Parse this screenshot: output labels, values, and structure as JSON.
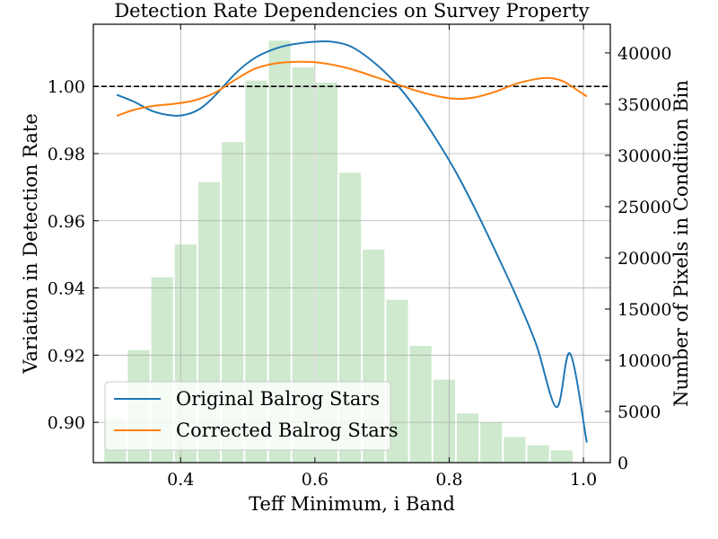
{
  "chart_data": {
    "type": "bar+line",
    "title": "Detection Rate Dependencies on Survey Property",
    "xlabel": "Teff Minimum, i Band",
    "ylabel": "Variation in Detection Rate",
    "y2label": "Number of Pixels in Condition Bin",
    "xlim": [
      0.27,
      1.04
    ],
    "ylim": [
      0.888,
      1.0185
    ],
    "y2lim": [
      0,
      42800
    ],
    "x_ticks": [
      0.4,
      0.6,
      0.8,
      1.0
    ],
    "x_tick_labels": [
      "0.4",
      "0.6",
      "0.8",
      "1.0"
    ],
    "y_ticks": [
      0.9,
      0.92,
      0.94,
      0.96,
      0.98,
      1.0
    ],
    "y_tick_labels": [
      "0.90",
      "0.92",
      "0.94",
      "0.96",
      "0.98",
      "1.00"
    ],
    "y2_ticks": [
      0,
      5000,
      10000,
      15000,
      20000,
      25000,
      30000,
      35000,
      40000
    ],
    "y2_tick_labels": [
      "0",
      "5000",
      "10000",
      "15000",
      "20000",
      "25000",
      "30000",
      "35000",
      "40000"
    ],
    "grid": true,
    "reference_line": {
      "y": 1.0,
      "style": "dashed",
      "color": "#000000"
    },
    "histogram": {
      "color": "#2ca02c",
      "opacity": 0.23,
      "bin_width": 0.035,
      "bins": [
        {
          "x": 0.3025,
          "count": 4300
        },
        {
          "x": 0.3375,
          "count": 11000
        },
        {
          "x": 0.3725,
          "count": 18100
        },
        {
          "x": 0.4075,
          "count": 21300
        },
        {
          "x": 0.4425,
          "count": 27400
        },
        {
          "x": 0.4775,
          "count": 31300
        },
        {
          "x": 0.5125,
          "count": 37300
        },
        {
          "x": 0.5475,
          "count": 41200
        },
        {
          "x": 0.5825,
          "count": 38600
        },
        {
          "x": 0.6175,
          "count": 37100
        },
        {
          "x": 0.6525,
          "count": 28300
        },
        {
          "x": 0.6875,
          "count": 20800
        },
        {
          "x": 0.7225,
          "count": 15900
        },
        {
          "x": 0.7575,
          "count": 11400
        },
        {
          "x": 0.7925,
          "count": 8100
        },
        {
          "x": 0.8275,
          "count": 4800
        },
        {
          "x": 0.8625,
          "count": 3900
        },
        {
          "x": 0.8975,
          "count": 2500
        },
        {
          "x": 0.9325,
          "count": 1700
        },
        {
          "x": 0.9675,
          "count": 1200
        }
      ]
    },
    "series": [
      {
        "name": "Original Balrog Stars",
        "color": "#1f77b4",
        "x": [
          0.305,
          0.33,
          0.36,
          0.39,
          0.41,
          0.43,
          0.45,
          0.48,
          0.5,
          0.52,
          0.55,
          0.58,
          0.6,
          0.62,
          0.64,
          0.66,
          0.69,
          0.72,
          0.75,
          0.78,
          0.81,
          0.84,
          0.87,
          0.9,
          0.93,
          0.96,
          0.98,
          1.005
        ],
        "y": [
          0.9975,
          0.9955,
          0.9925,
          0.9913,
          0.9917,
          0.9935,
          0.997,
          1.0035,
          1.007,
          1.0095,
          1.0118,
          1.0129,
          1.0133,
          1.0134,
          1.0128,
          1.0112,
          1.0068,
          1.001,
          0.9935,
          0.9845,
          0.9745,
          0.963,
          0.9505,
          0.9375,
          0.923,
          0.9045,
          0.9205,
          0.894
        ]
      },
      {
        "name": "Corrected Balrog Stars",
        "color": "#ff7f0e",
        "x": [
          0.305,
          0.33,
          0.36,
          0.39,
          0.42,
          0.45,
          0.48,
          0.51,
          0.54,
          0.57,
          0.6,
          0.63,
          0.66,
          0.69,
          0.72,
          0.75,
          0.78,
          0.81,
          0.84,
          0.87,
          0.9,
          0.93,
          0.95,
          0.97,
          0.99,
          1.005
        ],
        "y": [
          0.9912,
          0.993,
          0.9942,
          0.9948,
          0.9958,
          0.998,
          1.0018,
          1.0052,
          1.0068,
          1.0073,
          1.0072,
          1.0063,
          1.0048,
          1.0028,
          1.0008,
          0.9988,
          0.9972,
          0.9963,
          0.9968,
          0.9985,
          1.0008,
          1.0022,
          1.0025,
          1.0015,
          0.999,
          0.997
        ]
      }
    ],
    "legend": {
      "placement": "lower-left",
      "entries": [
        "Original Balrog Stars",
        "Corrected Balrog Stars"
      ]
    }
  }
}
